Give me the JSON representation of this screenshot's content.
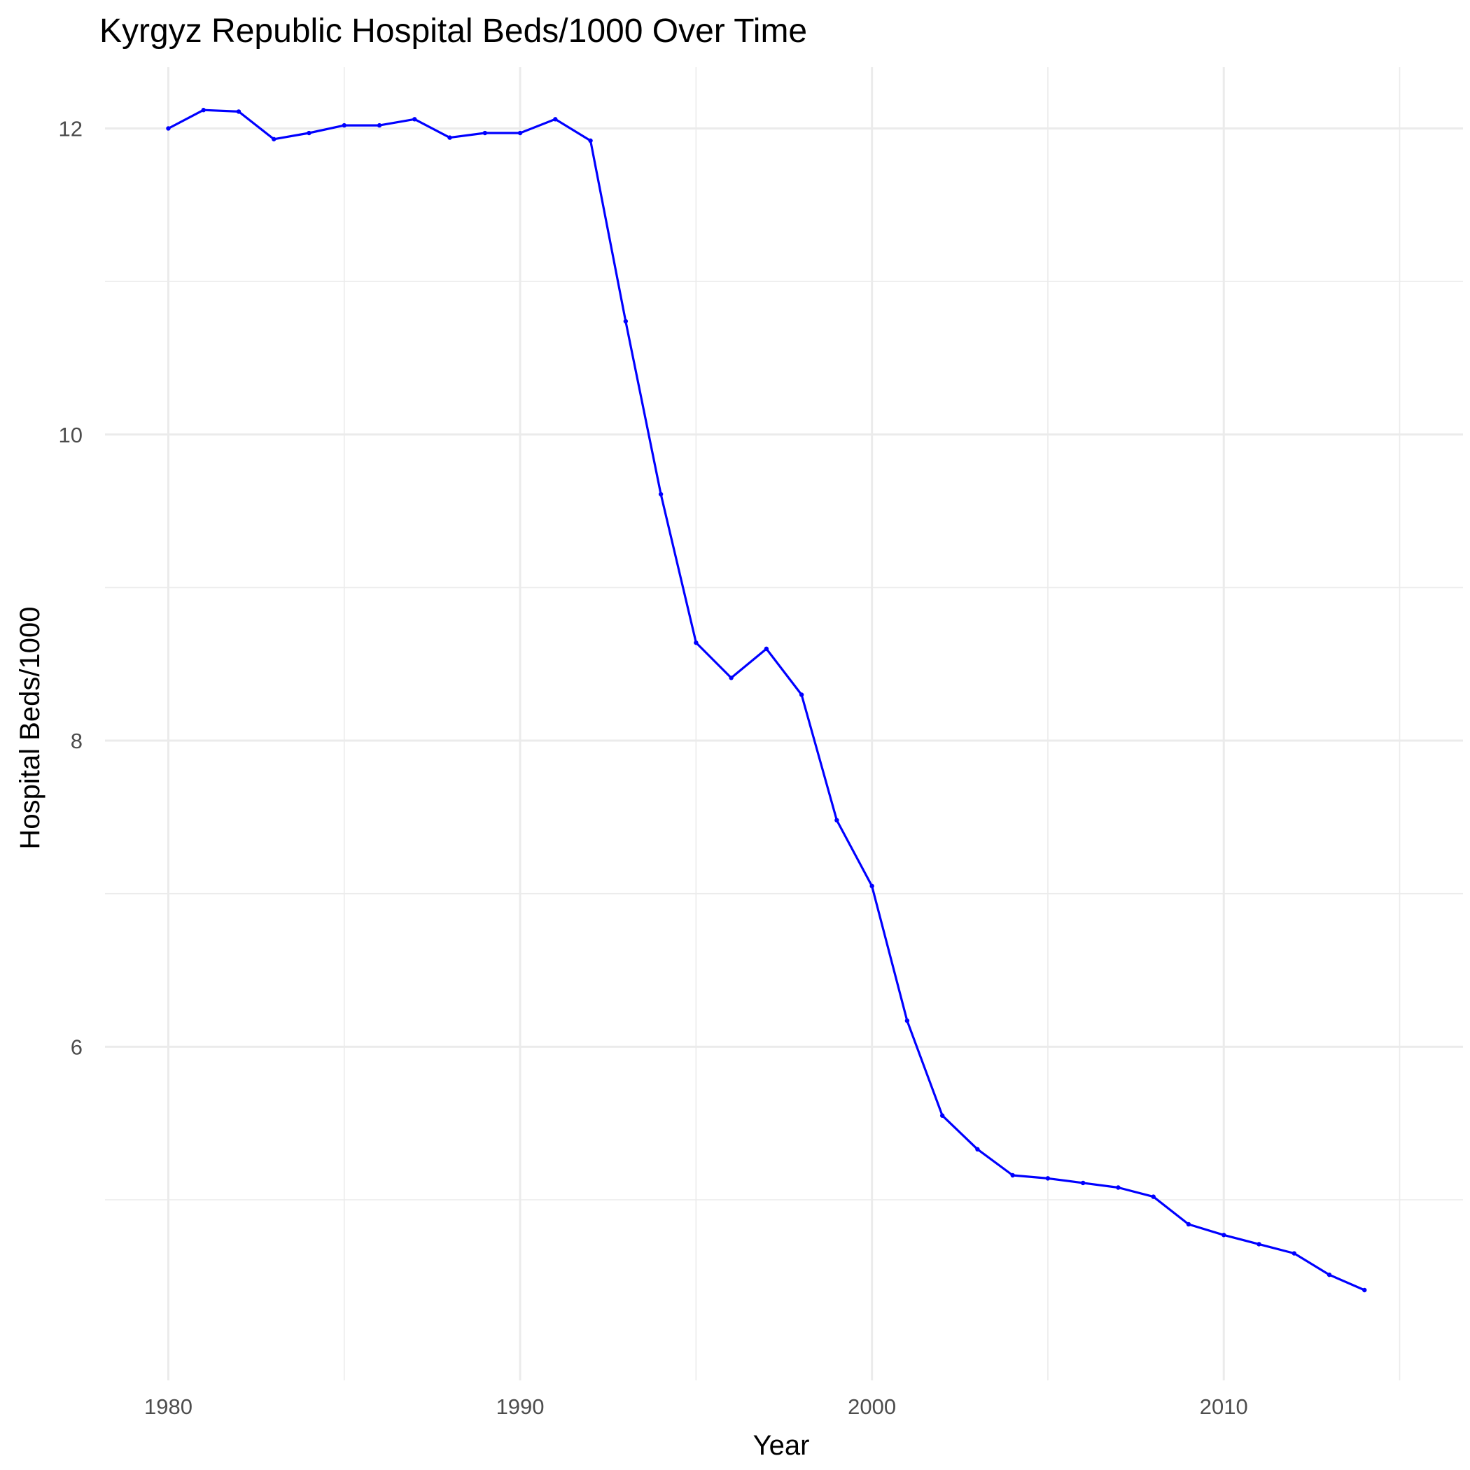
{
  "chart_data": {
    "type": "line",
    "title": "Kyrgyz Republic Hospital Beds/1000 Over Time",
    "xlabel": "Year",
    "ylabel": "Hospital Beds/1000",
    "xlim": [
      1978.2,
      2016.8
    ],
    "ylim": [
      3.82,
      12.4
    ],
    "x_ticks": [
      1980,
      1990,
      2000,
      2010
    ],
    "y_ticks": [
      6,
      8,
      10,
      12
    ],
    "grid": true,
    "line_color": "#0000ff",
    "series": [
      {
        "x": [
          1980,
          1981,
          1982,
          1983,
          1984,
          1985,
          1986,
          1987,
          1988,
          1989,
          1990,
          1991,
          1992,
          1993,
          1994,
          1995,
          1996,
          1997,
          1998,
          1999,
          2000,
          2001,
          2002,
          2003,
          2004,
          2005,
          2006,
          2007,
          2008,
          2009,
          2010,
          2011,
          2012,
          2013,
          2014
        ],
        "values": [
          12.0,
          12.12,
          12.11,
          11.93,
          11.97,
          12.02,
          12.02,
          12.06,
          11.94,
          11.97,
          11.97,
          12.06,
          11.92,
          10.74,
          9.61,
          8.64,
          8.41,
          8.6,
          8.3,
          7.48,
          7.05,
          6.17,
          5.55,
          5.33,
          5.16,
          5.14,
          5.11,
          5.08,
          5.02,
          4.84,
          4.77,
          4.71,
          4.65,
          4.51,
          4.41
        ]
      }
    ]
  }
}
